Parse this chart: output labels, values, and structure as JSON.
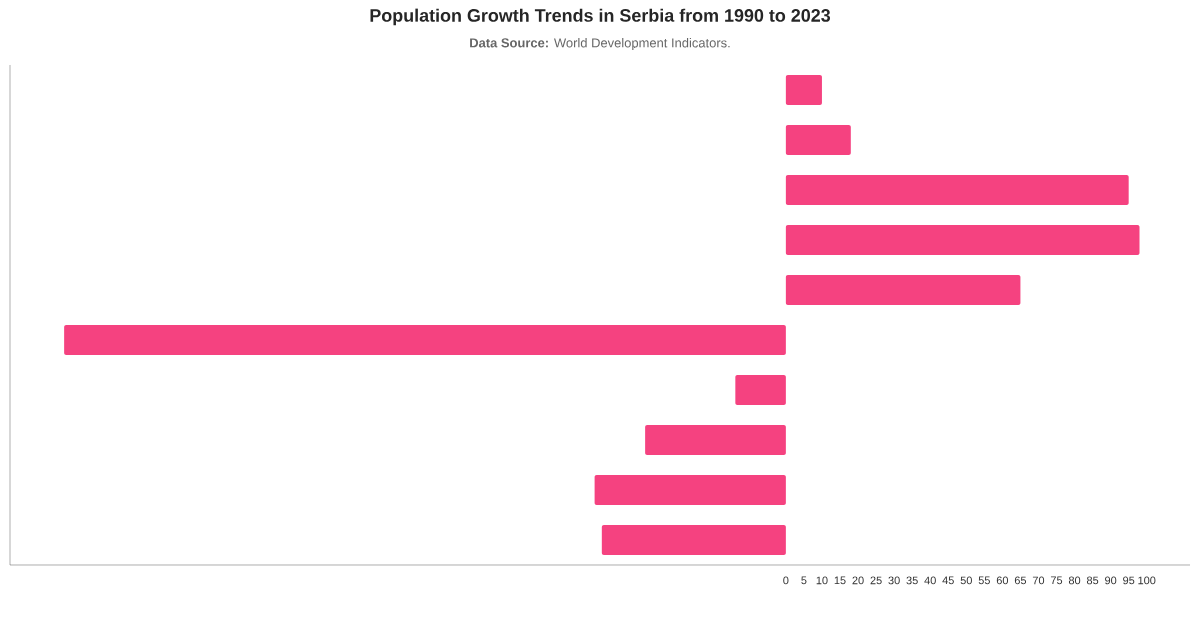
{
  "chart_data": {
    "type": "bar",
    "orientation": "horizontal",
    "title": "Population Growth Trends in Serbia from 1990 to 2023",
    "subtitle": "**Data Source:** World Development Indicators.",
    "categories": [
      null,
      null,
      null,
      null,
      null,
      null,
      null,
      null,
      null,
      null
    ],
    "values": [
      10,
      18,
      95,
      98,
      65,
      -200,
      -14,
      -39,
      -53,
      -51
    ],
    "color": "#f54280",
    "xlim": [
      -215,
      112
    ],
    "xticks": [
      0,
      5,
      10,
      15,
      20,
      25,
      30,
      35,
      40,
      45,
      50,
      55,
      60,
      65,
      70,
      75,
      80,
      85,
      90,
      95,
      100
    ],
    "tick_labels": "x"
  }
}
